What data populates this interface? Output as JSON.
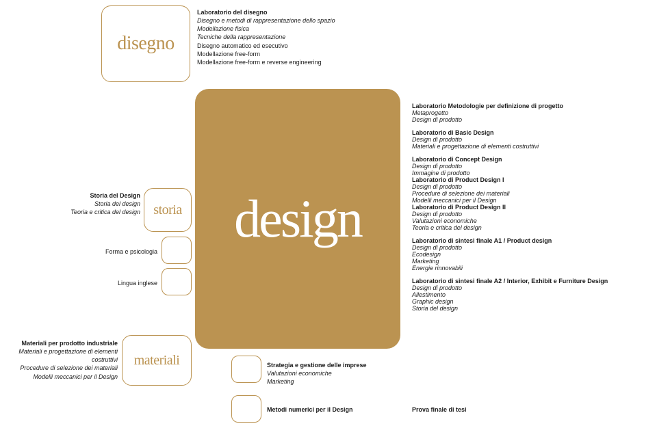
{
  "colors": {
    "accent": "#bb9351",
    "bg": "#ffffff",
    "text": "#1a1a1a",
    "white": "#ffffff"
  },
  "boxes": {
    "disegno": {
      "label": "disegno",
      "font_family": "serif",
      "font_size": 28,
      "border_radius": 14
    },
    "design": {
      "label": "design",
      "font_family": "serif",
      "font_size": 78,
      "filled": true,
      "border_radius": 20
    },
    "storia": {
      "label": "storia",
      "font_family": "serif",
      "font_size": 20,
      "border_radius": 14
    },
    "materiali": {
      "label": "materiali",
      "font_family": "serif",
      "font_size": 20,
      "border_radius": 14
    }
  },
  "disegno_list": {
    "title": "Laboratorio del disegno",
    "italic": [
      "Disegno e metodi di rappresentazione dello spazio",
      "Modellazione fisica",
      "Tecniche della rappresentazione"
    ],
    "plain": [
      "Disegno automatico ed esecutivo",
      "Modellazione free-form",
      "Modellazione free-form e reverse engineering"
    ]
  },
  "left": {
    "storia": {
      "title": "Storia del Design",
      "lines": [
        "Storia del design",
        "Teoria e critica del design"
      ]
    },
    "forma": "Forma e psicologia",
    "lingua": "Lingua inglese",
    "materiali": {
      "title": "Materiali per prodotto industriale",
      "lines": [
        "Materiali e progettazione di elementi costruttivi",
        "Procedure di selezione dei materiali",
        "Modelli meccanici per il Design"
      ]
    }
  },
  "bottom": {
    "strategia": {
      "title": "Strategia e gestione delle imprese",
      "lines": [
        "Valutazioni economiche",
        "Marketing"
      ]
    },
    "metodi": "Metodi numerici per il Design"
  },
  "right": {
    "g1": {
      "title": "Laboratorio Metodologie per definizione di progetto",
      "lines_i": [
        "Metaprogetto",
        "Design di prodotto"
      ]
    },
    "g2": {
      "title": "Laboratorio di Basic Design",
      "lines_i": [
        "Design di prodotto",
        "Materiali e progettazione di elementi costruttivi"
      ]
    },
    "g3": {
      "title": "Laboratorio di Concept Design",
      "lines_i": [
        "Design di prodotto",
        "Immagine di prodotto"
      ],
      "title2": "Laboratorio di Product Design I",
      "lines2_i": [
        "Design di prodotto",
        "Procedure di selezione dei materiali",
        "Modelli meccanici per il Design"
      ],
      "title3": "Laboratorio di Product Design II",
      "lines3_i": [
        "Design di prodotto",
        "Valutazioni economiche",
        "Teoria e critica del design"
      ]
    },
    "g4": {
      "title": "Laboratorio di sintesi finale A1 / Product design",
      "lines_i": [
        "Design di prodotto",
        "Ecodesign",
        "Marketing",
        "Energie rinnovabili"
      ]
    },
    "g5": {
      "title": "Laboratorio di sintesi finale A2 / Interior, Exhibit e Furniture Design",
      "lines_i": [
        "Design di prodotto",
        "Allestimento",
        "Graphic design",
        "Storia del design"
      ]
    },
    "prova": "Prova finale di tesi"
  }
}
